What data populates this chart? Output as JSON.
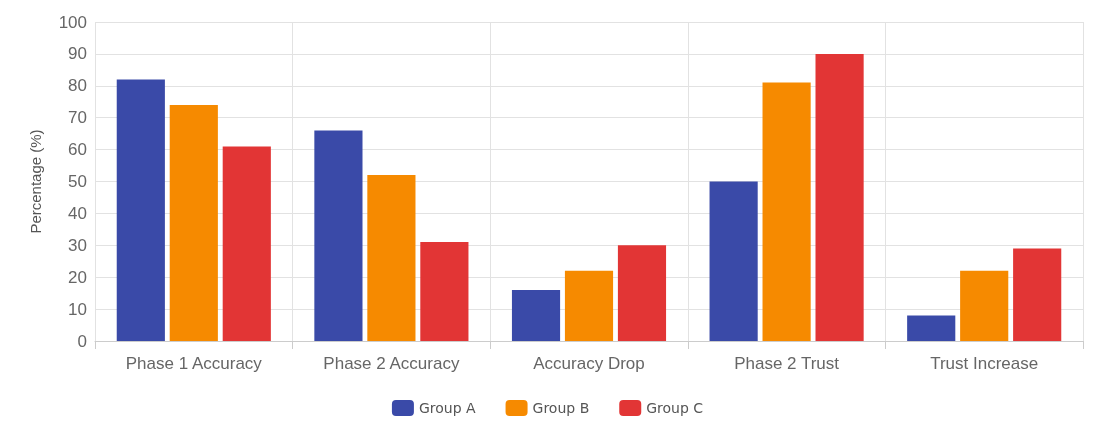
{
  "chart_data": {
    "type": "bar",
    "ylabel": "Percentage (%)",
    "categories": [
      "Phase 1 Accuracy",
      "Phase 2 Accuracy",
      "Accuracy Drop",
      "Phase 2 Trust",
      "Trust Increase"
    ],
    "series": [
      {
        "name": "Group A",
        "color": "#3a4aa8",
        "values": [
          82,
          66,
          16,
          50,
          8
        ]
      },
      {
        "name": "Group B",
        "color": "#f68a00",
        "values": [
          74,
          52,
          22,
          81,
          22
        ]
      },
      {
        "name": "Group C",
        "color": "#e23535",
        "values": [
          61,
          31,
          30,
          90,
          29
        ]
      }
    ],
    "ylim": [
      0,
      100
    ],
    "yticks": [
      0,
      10,
      20,
      30,
      40,
      50,
      60,
      70,
      80,
      90,
      100
    ],
    "grid": true,
    "legend": "bottom"
  }
}
